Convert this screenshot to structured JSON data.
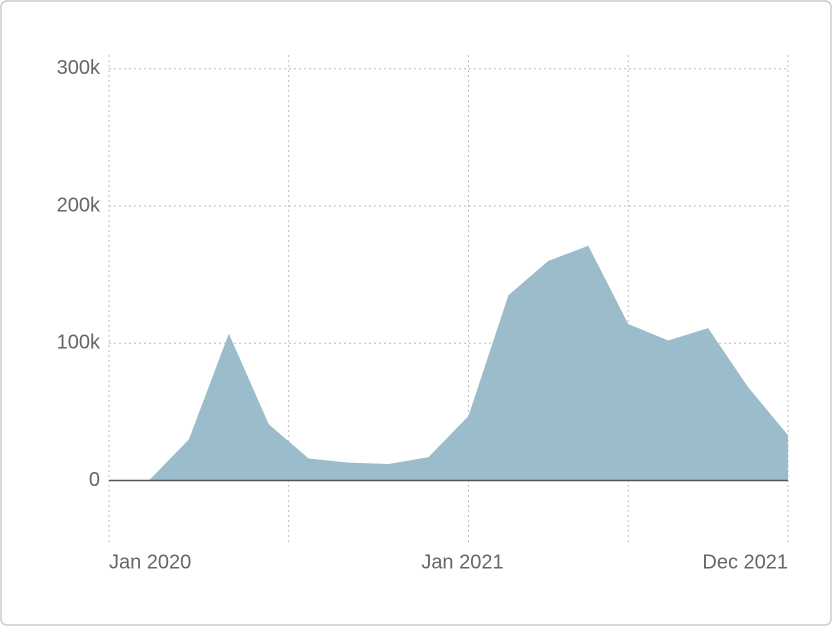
{
  "chart_data": {
    "type": "area",
    "categories": [
      "Jan 2020",
      null,
      null,
      null,
      null,
      null,
      null,
      null,
      null,
      "Jan 2021",
      null,
      null,
      null,
      null,
      null,
      null,
      null,
      "Dec 2021"
    ],
    "values": [
      null,
      0,
      30000,
      107000,
      41000,
      16000,
      13000,
      12000,
      17000,
      47000,
      135000,
      160000,
      171000,
      114000,
      102000,
      111000,
      68000,
      33000
    ],
    "color": "#9bbccb",
    "ylim": [
      -47000,
      310000
    ],
    "yticks": [
      0,
      {
        "value": 100000,
        "label": "100k"
      },
      {
        "value": 200000,
        "label": "200k"
      },
      {
        "value": 300000,
        "label": "300k"
      }
    ],
    "grid": true
  }
}
